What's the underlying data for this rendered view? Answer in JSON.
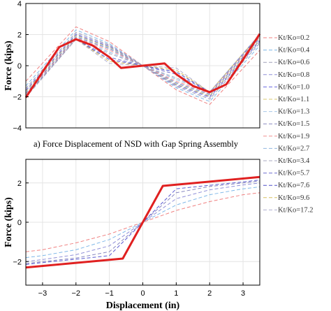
{
  "figure": {
    "caption": "a)   Force Displacement of NSD with Gap Spring Assembly"
  },
  "legend": {
    "placement": "right"
  },
  "chart_data": [
    {
      "type": "line",
      "title": "",
      "xlabel": "",
      "ylabel": "Force (kips)",
      "xlim": [
        -3.5,
        3.5
      ],
      "ylim": [
        -4,
        4
      ],
      "yticks": [
        -4,
        -2,
        0,
        2,
        4
      ],
      "grid": true,
      "series": [
        {
          "name": "Kt/Ko=0.2",
          "color": "#f08080",
          "dash": "5,3",
          "x": [
            -3.5,
            -2,
            -1,
            0,
            1,
            2,
            3.5
          ],
          "y": [
            -1.0,
            2.5,
            1.55,
            0,
            -1.55,
            -2.5,
            1.0
          ]
        },
        {
          "name": "Kt/Ko=0.4",
          "color": "#7fb8e8",
          "dash": "5,3",
          "x": [
            -3.5,
            -2,
            -1,
            0,
            1,
            2,
            3.5
          ],
          "y": [
            -1.3,
            2.3,
            1.42,
            0,
            -1.42,
            -2.3,
            1.3
          ]
        },
        {
          "name": "Kt/Ko=0.6",
          "color": "#a0a0b8",
          "dash": "5,3",
          "x": [
            -3.5,
            -2,
            -1,
            0,
            1,
            2,
            3.5
          ],
          "y": [
            -1.45,
            2.15,
            1.34,
            0,
            -1.34,
            -2.15,
            1.45
          ]
        },
        {
          "name": "Kt/Ko=0.8",
          "color": "#9090d8",
          "dash": "5,3",
          "x": [
            -3.5,
            -2,
            -1,
            0,
            1,
            2,
            3.5
          ],
          "y": [
            -1.55,
            2.05,
            1.28,
            0,
            -1.28,
            -2.05,
            1.55
          ]
        },
        {
          "name": "Kt/Ko=1.0",
          "color": "#6a6ae0",
          "dash": "5,3",
          "x": [
            -3.5,
            -2,
            -1,
            0,
            1,
            2,
            3.5
          ],
          "y": [
            -1.62,
            1.98,
            1.22,
            0,
            -1.22,
            -1.98,
            1.62
          ]
        },
        {
          "name": "Kt/Ko=1.1",
          "color": "#d8c870",
          "dash": "5,3",
          "x": [
            -3.5,
            -2,
            -1,
            0,
            1,
            2,
            3.5
          ],
          "y": [
            -1.66,
            1.94,
            1.19,
            0,
            -1.19,
            -1.94,
            1.66
          ]
        },
        {
          "name": "Kt/Ko=1.3",
          "color": "#a8c8e8",
          "dash": "5,3",
          "x": [
            -3.5,
            -2,
            -1,
            0,
            1,
            2,
            3.5
          ],
          "y": [
            -1.72,
            1.88,
            1.14,
            0,
            -1.14,
            -1.88,
            1.72
          ]
        },
        {
          "name": "Kt/Ko=1.5",
          "color": "#8888c0",
          "dash": "5,3",
          "x": [
            -3.5,
            -2,
            -1,
            0,
            1,
            2,
            3.5
          ],
          "y": [
            -1.78,
            1.84,
            1.09,
            0,
            -1.09,
            -1.84,
            1.78
          ]
        },
        {
          "name": "Kt/Ko=1.9",
          "color": "#f09090",
          "dash": "5,3",
          "x": [
            -3.5,
            -2,
            -1,
            0,
            1,
            2,
            3.5
          ],
          "y": [
            -1.84,
            1.78,
            1.0,
            0,
            -1.0,
            -1.78,
            1.84
          ]
        },
        {
          "name": "Kt/Ko=2.7",
          "color": "#90b8e0",
          "dash": "5,3",
          "x": [
            -3.5,
            -2,
            -1,
            0,
            1,
            2,
            3.5
          ],
          "y": [
            -1.9,
            1.74,
            0.88,
            0,
            -0.88,
            -1.74,
            1.9
          ]
        },
        {
          "name": "Kt/Ko=3.4",
          "color": "#a8a8c0",
          "dash": "5,3",
          "x": [
            -3.5,
            -2,
            -1,
            0,
            1,
            2,
            3.5
          ],
          "y": [
            -1.94,
            1.72,
            0.78,
            0,
            -0.78,
            -1.72,
            1.94
          ]
        },
        {
          "name": "Kt/Ko=5.7",
          "color": "#7070d0",
          "dash": "5,3",
          "x": [
            -3.5,
            -2,
            -1,
            0,
            1,
            2,
            3.5
          ],
          "y": [
            -1.98,
            1.7,
            0.55,
            0,
            -0.55,
            -1.7,
            1.98
          ]
        },
        {
          "name": "Kt/Ko=7.6",
          "color": "#5050c8",
          "dash": "5,3",
          "x": [
            -3.5,
            -2,
            -1,
            0,
            1,
            2,
            3.5
          ],
          "y": [
            -2.0,
            1.7,
            0.4,
            0,
            -0.4,
            -1.7,
            2.0
          ]
        },
        {
          "name": "Kt/Ko=9.6",
          "color": "#d8c060",
          "dash": "5,3",
          "x": [
            -3.5,
            -2,
            -1,
            0,
            1,
            2,
            3.5
          ],
          "y": [
            -2.02,
            1.7,
            0.28,
            0,
            -0.28,
            -1.7,
            2.02
          ]
        },
        {
          "name": "Kt/Ko=17.2",
          "color": "#b0b0d0",
          "dash": "5,3",
          "x": [
            -3.5,
            -2,
            -1,
            0,
            1,
            2,
            3.5
          ],
          "y": [
            -2.04,
            1.7,
            0.15,
            0,
            -0.15,
            -1.7,
            2.04
          ]
        },
        {
          "name": "",
          "color": "#e02020",
          "dash": "",
          "width": 3,
          "x": [
            -3.5,
            -3,
            -2.5,
            -2,
            -1.5,
            -1,
            -0.65,
            0,
            0.65,
            1,
            1.5,
            2,
            2.5,
            3,
            3.5
          ],
          "y": [
            -2.05,
            -0.4,
            1.2,
            1.7,
            1.3,
            0.55,
            -0.15,
            0,
            0.15,
            -0.55,
            -1.3,
            -1.7,
            -1.2,
            0.4,
            2.05
          ]
        }
      ]
    },
    {
      "type": "line",
      "title": "",
      "xlabel": "Displacement (in)",
      "ylabel": "Force (kips)",
      "xlim": [
        -3.5,
        3.5
      ],
      "ylim": [
        -3.2,
        3.2
      ],
      "xticks": [
        -3,
        -2,
        -1,
        0,
        1,
        2,
        3
      ],
      "yticks": [
        -2,
        0,
        2
      ],
      "grid": true,
      "series": [
        {
          "name": "Kt/Ko=0.2",
          "color": "#f08080",
          "dash": "5,3",
          "x": [
            -3.5,
            -3,
            -2,
            -1,
            0,
            1,
            2,
            3,
            3.5
          ],
          "y": [
            -1.5,
            -1.4,
            -1.05,
            -0.6,
            0,
            0.6,
            1.05,
            1.4,
            1.5
          ]
        },
        {
          "name": "Kt/Ko=0.4",
          "color": "#7fb8e8",
          "dash": "5,3",
          "x": [
            -3.5,
            -3,
            -2,
            -1,
            0,
            1,
            2,
            3,
            3.5
          ],
          "y": [
            -1.8,
            -1.7,
            -1.4,
            -0.88,
            0,
            0.88,
            1.4,
            1.7,
            1.8
          ]
        },
        {
          "name": "Kt/Ko=0.8",
          "color": "#9090d8",
          "dash": "5,3",
          "x": [
            -3.5,
            -3,
            -2,
            -1,
            0,
            1,
            2,
            3,
            3.5
          ],
          "y": [
            -2.0,
            -1.9,
            -1.65,
            -1.2,
            0,
            1.2,
            1.65,
            1.9,
            2.0
          ]
        },
        {
          "name": "Kt/Ko=1.5",
          "color": "#8888c0",
          "dash": "5,3",
          "x": [
            -3.5,
            -3,
            -2,
            -1,
            0,
            1,
            2,
            3,
            3.5
          ],
          "y": [
            -2.1,
            -2.0,
            -1.82,
            -1.5,
            0,
            1.5,
            1.82,
            2.0,
            2.1
          ]
        },
        {
          "name": "Kt/Ko=3.4",
          "color": "#5a5ad0",
          "dash": "5,3",
          "x": [
            -3.5,
            -3,
            -2,
            -1,
            0,
            1,
            2,
            3,
            3.5
          ],
          "y": [
            -2.15,
            -2.05,
            -1.88,
            -1.7,
            0,
            1.7,
            1.88,
            2.05,
            2.15
          ]
        },
        {
          "name": "",
          "color": "#e02020",
          "dash": "",
          "width": 3,
          "x": [
            -3.5,
            -0.6,
            0,
            0.6,
            3.5
          ],
          "y": [
            -2.3,
            -1.85,
            0,
            1.85,
            2.3
          ]
        }
      ]
    }
  ]
}
